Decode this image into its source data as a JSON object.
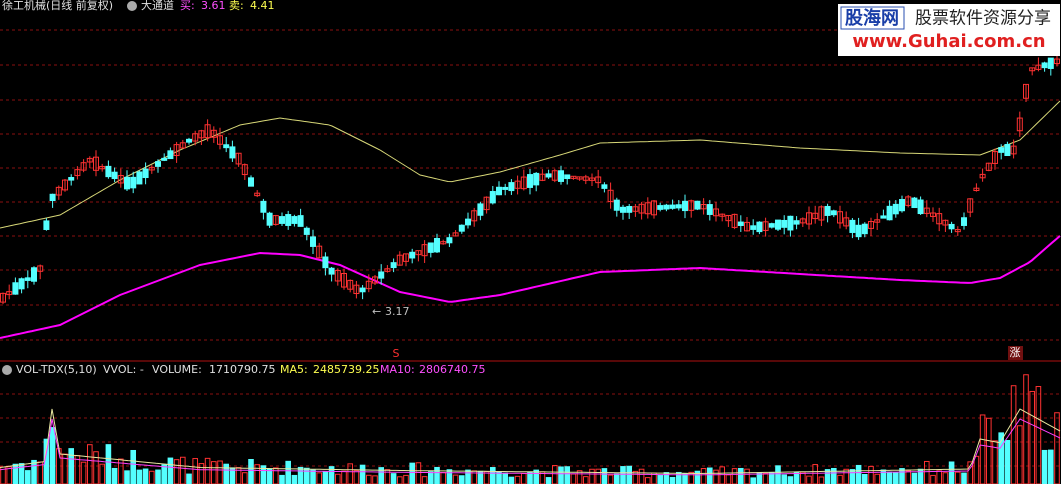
{
  "header": {
    "title": "徐工机械(日线 前复权)",
    "indicator": "大通道",
    "buy_label": "买:",
    "buy_value": "3.61",
    "sell_label": "卖:",
    "sell_value": "4.41"
  },
  "annotations": {
    "low": "3.17",
    "marker_s": "S",
    "marker_zhang": "涨"
  },
  "volume_header": {
    "name": "VOL-TDX(5,10)",
    "vvol": "VVOL: -",
    "volume_label": "VOLUME:",
    "volume_value": "1710790.75",
    "ma5_label": "MA5:",
    "ma5_value": "2485739.25",
    "ma10_label": "MA10:",
    "ma10_value": "2806740.75"
  },
  "watermark": {
    "brand": "股海网",
    "slogan": "股票软件资源分享",
    "url": "www.Guhai.com.cn"
  }
}
